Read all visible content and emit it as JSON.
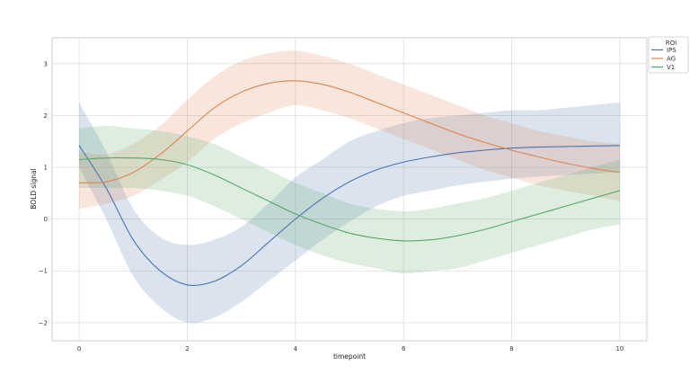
{
  "chart_data": {
    "type": "line",
    "xlabel": "timepoint",
    "ylabel": "BOLD signal",
    "xlim": [
      -0.5,
      10.5
    ],
    "ylim": [
      -2.35,
      3.5
    ],
    "x_ticks": [
      0,
      2,
      4,
      6,
      8,
      10
    ],
    "y_ticks": [
      -2,
      -1,
      0,
      1,
      2,
      3
    ],
    "grid": true,
    "legend": {
      "title": "ROI",
      "placement": "outside-top-right"
    },
    "x": [
      0,
      0.5,
      1,
      1.5,
      2,
      2.5,
      3,
      3.5,
      4,
      4.5,
      5,
      5.5,
      6,
      6.5,
      7,
      7.5,
      8,
      8.5,
      9,
      9.5,
      10
    ],
    "series": [
      {
        "name": "IPS",
        "color": "#4c72b0",
        "values": [
          1.42,
          0.6,
          -0.4,
          -1.0,
          -1.27,
          -1.2,
          -0.9,
          -0.45,
          0.0,
          0.4,
          0.72,
          0.95,
          1.1,
          1.2,
          1.28,
          1.33,
          1.37,
          1.39,
          1.4,
          1.41,
          1.42
        ],
        "lower": [
          1.0,
          0.0,
          -1.1,
          -1.7,
          -2.0,
          -1.9,
          -1.6,
          -1.2,
          -0.8,
          -0.4,
          -0.05,
          0.25,
          0.45,
          0.55,
          0.65,
          0.72,
          0.78,
          0.82,
          0.85,
          0.88,
          0.9
        ],
        "upper": [
          2.25,
          1.3,
          0.2,
          -0.35,
          -0.5,
          -0.4,
          -0.15,
          0.3,
          0.8,
          1.15,
          1.5,
          1.7,
          1.85,
          1.95,
          2.0,
          2.05,
          2.1,
          2.1,
          2.15,
          2.2,
          2.25
        ]
      },
      {
        "name": "AG",
        "color": "#dd8452",
        "values": [
          0.7,
          0.72,
          0.9,
          1.25,
          1.7,
          2.15,
          2.45,
          2.62,
          2.67,
          2.6,
          2.45,
          2.25,
          2.05,
          1.85,
          1.65,
          1.48,
          1.33,
          1.2,
          1.08,
          0.98,
          0.9
        ],
        "lower": [
          0.2,
          0.3,
          0.45,
          0.75,
          1.1,
          1.55,
          1.85,
          2.05,
          2.2,
          2.1,
          1.95,
          1.75,
          1.55,
          1.35,
          1.15,
          0.95,
          0.8,
          0.65,
          0.55,
          0.45,
          0.35
        ],
        "upper": [
          1.3,
          1.25,
          1.45,
          1.8,
          2.3,
          2.75,
          3.05,
          3.2,
          3.25,
          3.15,
          3.0,
          2.8,
          2.6,
          2.4,
          2.2,
          2.0,
          1.85,
          1.7,
          1.6,
          1.5,
          1.45
        ]
      },
      {
        "name": "V1",
        "color": "#55a868",
        "values": [
          1.15,
          1.18,
          1.18,
          1.15,
          1.05,
          0.85,
          0.6,
          0.35,
          0.1,
          -0.1,
          -0.27,
          -0.37,
          -0.42,
          -0.4,
          -0.32,
          -0.2,
          -0.05,
          0.1,
          0.25,
          0.4,
          0.55
        ],
        "lower": [
          0.6,
          0.6,
          0.6,
          0.55,
          0.45,
          0.25,
          0.0,
          -0.25,
          -0.5,
          -0.7,
          -0.85,
          -0.95,
          -1.05,
          -1.0,
          -0.95,
          -0.8,
          -0.65,
          -0.5,
          -0.35,
          -0.2,
          -0.1
        ],
        "upper": [
          1.75,
          1.8,
          1.75,
          1.7,
          1.6,
          1.45,
          1.2,
          0.95,
          0.7,
          0.5,
          0.3,
          0.2,
          0.15,
          0.2,
          0.3,
          0.4,
          0.55,
          0.7,
          0.85,
          1.0,
          1.15
        ]
      }
    ]
  }
}
